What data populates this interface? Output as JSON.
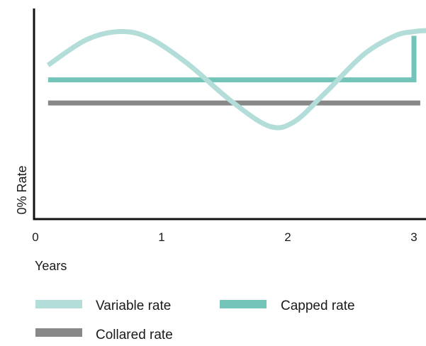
{
  "chart_data": {
    "type": "line",
    "title": "",
    "xlabel": "Years",
    "ylabel": "0% Rate",
    "xlim": [
      0,
      3
    ],
    "x_ticks": [
      "0",
      "1",
      "2",
      "3"
    ],
    "grid": false,
    "legend_position": "bottom",
    "series": [
      {
        "name": "Variable rate",
        "color": "#b3ddd8",
        "x": [
          0.1,
          0.4,
          0.67,
          0.9,
          1.2,
          1.55,
          1.85,
          2.05,
          2.3,
          2.6,
          2.85,
          3.0,
          3.1
        ],
        "y": [
          0.73,
          0.85,
          0.89,
          0.86,
          0.74,
          0.56,
          0.44,
          0.46,
          0.6,
          0.78,
          0.87,
          0.89,
          0.895
        ]
      },
      {
        "name": "Capped rate",
        "color": "#74c4b9",
        "x": [
          0.1,
          3.0,
          3.0
        ],
        "y": [
          0.66,
          0.66,
          0.87
        ]
      },
      {
        "name": "Collared rate",
        "color": "#888888",
        "x": [
          0.1,
          3.05
        ],
        "y": [
          0.55,
          0.55
        ]
      }
    ]
  }
}
